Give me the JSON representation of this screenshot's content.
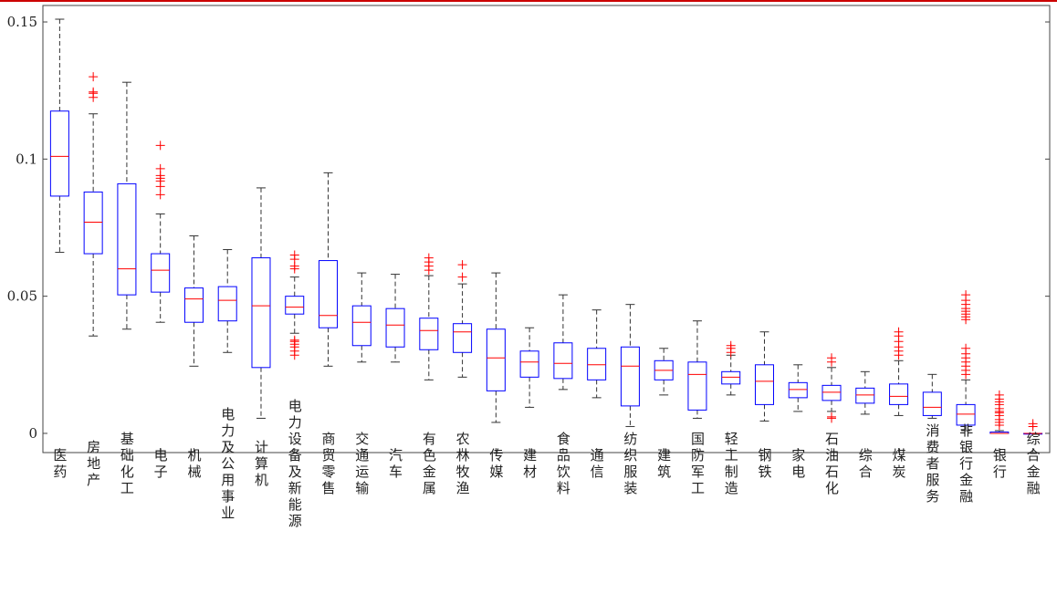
{
  "chart_data": {
    "type": "boxplot",
    "title": "",
    "xlabel": "",
    "ylabel": "",
    "ylim": [
      -0.007,
      0.156
    ],
    "yticks": [
      {
        "value": 0,
        "label": "0"
      },
      {
        "value": 0.05,
        "label": "0.05"
      },
      {
        "value": 0.1,
        "label": "0.1"
      },
      {
        "value": 0.15,
        "label": "0.15"
      }
    ],
    "grid": false,
    "colors": {
      "box": "#0000ff",
      "median": "#ff0000",
      "whisker": "#333333",
      "outlier": "#ff0000"
    },
    "categories": [
      "医药",
      "房地产",
      "基础化工",
      "电子",
      "机械",
      "电力及公用事业",
      "计算机",
      "电力设备及新能源",
      "商贸零售",
      "交通运输",
      "汽车",
      "有色金属",
      "农林牧渔",
      "传媒",
      "建材",
      "食品饮料",
      "通信",
      "纺织服装",
      "建筑",
      "国防军工",
      "轻工制造",
      "钢铁",
      "家电",
      "石油石化",
      "综合",
      "煤炭",
      "消费者服务",
      "非银行金融",
      "银行",
      "综合金融"
    ],
    "boxes": [
      {
        "min": 0.066,
        "q1": 0.0865,
        "median": 0.101,
        "q3": 0.1175,
        "max": 0.151,
        "outliers": []
      },
      {
        "min": 0.0355,
        "q1": 0.0655,
        "median": 0.077,
        "q3": 0.088,
        "max": 0.1165,
        "outliers": [
          0.1225,
          0.124,
          0.1245,
          0.13
        ]
      },
      {
        "min": 0.038,
        "q1": 0.0505,
        "median": 0.06,
        "q3": 0.091,
        "max": 0.128,
        "outliers": []
      },
      {
        "min": 0.0405,
        "q1": 0.0515,
        "median": 0.0595,
        "q3": 0.0655,
        "max": 0.08,
        "outliers": [
          0.087,
          0.09,
          0.092,
          0.093,
          0.094,
          0.0965,
          0.105
        ]
      },
      {
        "min": 0.0245,
        "q1": 0.0405,
        "median": 0.049,
        "q3": 0.053,
        "max": 0.072,
        "outliers": []
      },
      {
        "min": 0.0295,
        "q1": 0.041,
        "median": 0.0485,
        "q3": 0.0535,
        "max": 0.067,
        "outliers": []
      },
      {
        "min": 0.0055,
        "q1": 0.024,
        "median": 0.0465,
        "q3": 0.064,
        "max": 0.0895,
        "outliers": []
      },
      {
        "min": 0.0365,
        "q1": 0.0435,
        "median": 0.046,
        "q3": 0.05,
        "max": 0.057,
        "outliers": [
          0.0285,
          0.03,
          0.0315,
          0.0325,
          0.0335,
          0.034,
          0.06,
          0.061,
          0.0635,
          0.065
        ]
      },
      {
        "min": 0.0245,
        "q1": 0.0385,
        "median": 0.043,
        "q3": 0.063,
        "max": 0.095,
        "outliers": []
      },
      {
        "min": 0.026,
        "q1": 0.032,
        "median": 0.0405,
        "q3": 0.0465,
        "max": 0.0585,
        "outliers": []
      },
      {
        "min": 0.026,
        "q1": 0.0315,
        "median": 0.0395,
        "q3": 0.0455,
        "max": 0.058,
        "outliers": []
      },
      {
        "min": 0.0195,
        "q1": 0.0305,
        "median": 0.0375,
        "q3": 0.042,
        "max": 0.0575,
        "outliers": [
          0.0595,
          0.061,
          0.0625,
          0.064
        ]
      },
      {
        "min": 0.0205,
        "q1": 0.0295,
        "median": 0.037,
        "q3": 0.04,
        "max": 0.0545,
        "outliers": [
          0.057,
          0.0615
        ]
      },
      {
        "min": 0.004,
        "q1": 0.0155,
        "median": 0.0275,
        "q3": 0.038,
        "max": 0.0585,
        "outliers": []
      },
      {
        "min": 0.0095,
        "q1": 0.0205,
        "median": 0.026,
        "q3": 0.03,
        "max": 0.0385,
        "outliers": []
      },
      {
        "min": 0.016,
        "q1": 0.02,
        "median": 0.0255,
        "q3": 0.033,
        "max": 0.0505,
        "outliers": []
      },
      {
        "min": 0.013,
        "q1": 0.0195,
        "median": 0.025,
        "q3": 0.031,
        "max": 0.045,
        "outliers": []
      },
      {
        "min": 0.0025,
        "q1": 0.01,
        "median": 0.0245,
        "q3": 0.0315,
        "max": 0.047,
        "outliers": []
      },
      {
        "min": 0.014,
        "q1": 0.0195,
        "median": 0.023,
        "q3": 0.0265,
        "max": 0.031,
        "outliers": []
      },
      {
        "min": 0.0055,
        "q1": 0.0085,
        "median": 0.0215,
        "q3": 0.026,
        "max": 0.041,
        "outliers": []
      },
      {
        "min": 0.014,
        "q1": 0.018,
        "median": 0.0205,
        "q3": 0.0225,
        "max": 0.0285,
        "outliers": [
          0.0295,
          0.031,
          0.032
        ]
      },
      {
        "min": 0.0045,
        "q1": 0.0105,
        "median": 0.019,
        "q3": 0.025,
        "max": 0.037,
        "outliers": []
      },
      {
        "min": 0.008,
        "q1": 0.013,
        "median": 0.016,
        "q3": 0.0185,
        "max": 0.025,
        "outliers": []
      },
      {
        "min": 0.008,
        "q1": 0.012,
        "median": 0.015,
        "q3": 0.0175,
        "max": 0.024,
        "outliers": [
          0.0055,
          0.006,
          0.026,
          0.0275
        ]
      },
      {
        "min": 0.007,
        "q1": 0.011,
        "median": 0.014,
        "q3": 0.0165,
        "max": 0.0225,
        "outliers": []
      },
      {
        "min": 0.0065,
        "q1": 0.0105,
        "median": 0.0135,
        "q3": 0.018,
        "max": 0.0265,
        "outliers": [
          0.0285,
          0.03,
          0.0315,
          0.0335,
          0.0355,
          0.037
        ]
      },
      {
        "min": 0.0055,
        "q1": 0.0065,
        "median": 0.0095,
        "q3": 0.015,
        "max": 0.0215,
        "outliers": []
      },
      {
        "min": 0.001,
        "q1": 0.003,
        "median": 0.007,
        "q3": 0.0105,
        "max": 0.0195,
        "outliers": [
          0.0215,
          0.023,
          0.0245,
          0.026,
          0.0275,
          0.029,
          0.031,
          0.0415,
          0.0425,
          0.0435,
          0.0445,
          0.0455,
          0.047,
          0.0485,
          0.0505
        ]
      },
      {
        "min": 0.0,
        "q1": 0.0,
        "median": 0.0,
        "q3": 0.0005,
        "max": 0.001,
        "outliers": [
          0.003,
          0.004,
          0.005,
          0.0065,
          0.0075,
          0.008,
          0.009,
          0.0105,
          0.0115,
          0.0125,
          0.014
        ]
      },
      {
        "min": 0.0,
        "q1": 0.0,
        "median": 0.0,
        "q3": 0.0,
        "max": 0.0,
        "outliers": [
          0.0025,
          0.0035
        ]
      }
    ]
  }
}
